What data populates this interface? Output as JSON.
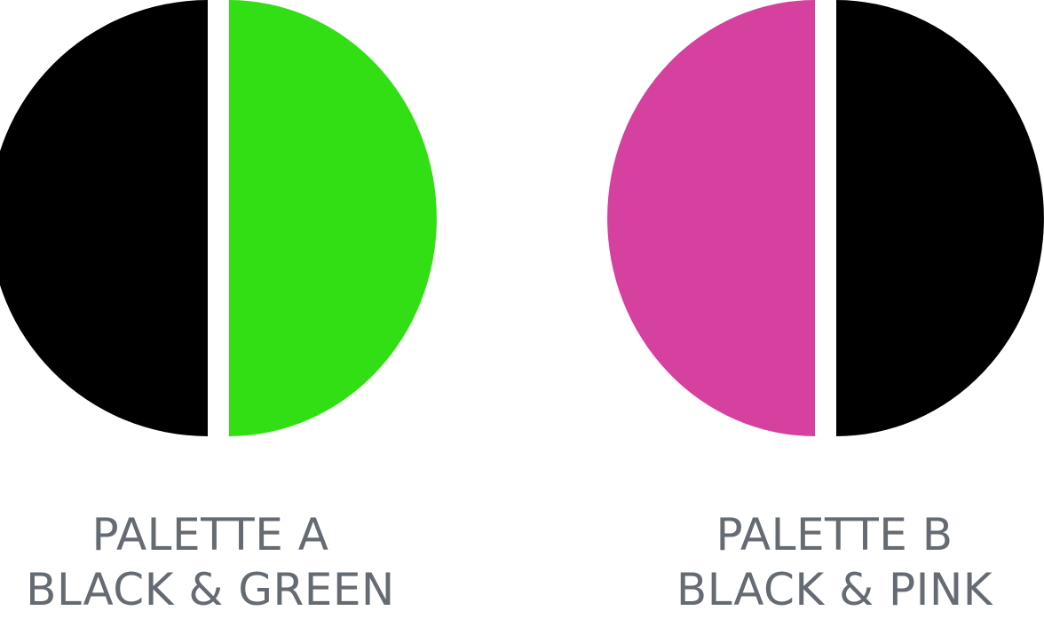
{
  "palettes": [
    {
      "title": "PALETTE A",
      "subtitle": "BLACK & GREEN",
      "left_color": "#000000",
      "right_color": "#31df14"
    },
    {
      "title": "PALETTE B",
      "subtitle": "BLACK & PINK",
      "left_color": "#d6409f",
      "right_color": "#000000"
    }
  ],
  "label_color": "#656b72",
  "background_color": "#ffffff"
}
